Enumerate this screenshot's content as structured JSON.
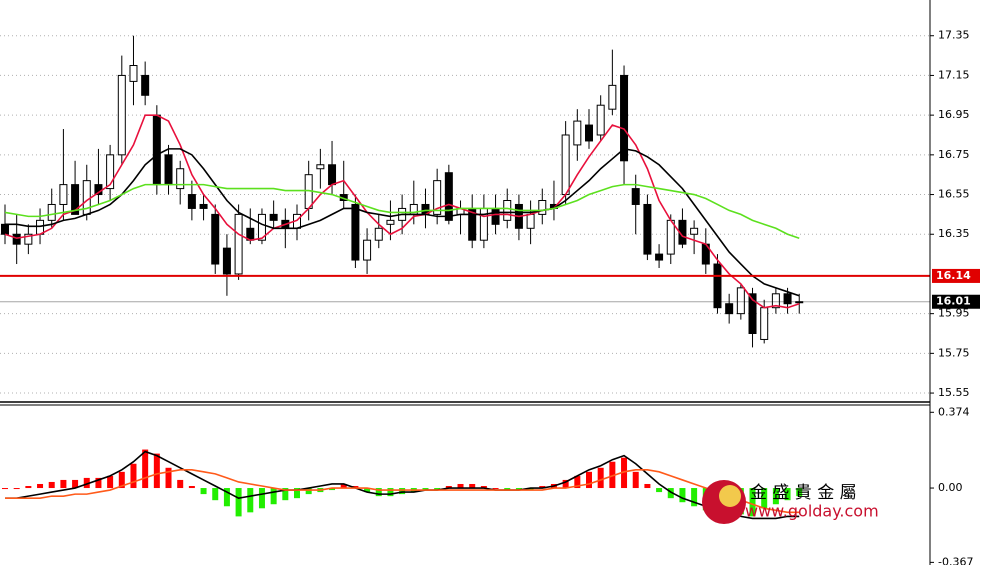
{
  "chart_data": [
    {
      "type": "candlestick",
      "open": [
        16.4,
        16.35,
        16.3,
        16.35,
        16.42,
        16.5,
        16.6,
        16.45,
        16.6,
        16.58,
        16.75,
        17.12,
        17.15,
        16.95,
        16.75,
        16.58,
        16.55,
        16.5,
        16.45,
        16.28,
        16.15,
        16.38,
        16.32,
        16.45,
        16.42,
        16.38,
        16.48,
        16.68,
        16.7,
        16.55,
        16.5,
        16.22,
        16.32,
        16.4,
        16.42,
        16.45,
        16.5,
        16.45,
        16.66,
        16.45,
        16.48,
        16.32,
        16.48,
        16.42,
        16.5,
        16.38,
        16.45,
        16.5,
        16.55,
        16.8,
        16.9,
        16.85,
        16.98,
        17.15,
        16.58,
        16.5,
        16.25,
        16.25,
        16.42,
        16.35,
        16.3,
        16.2,
        16.0,
        15.95,
        16.05,
        15.82,
        15.98,
        16.05,
        16.01
      ],
      "high": [
        16.5,
        16.45,
        16.4,
        16.48,
        16.58,
        16.88,
        16.72,
        16.7,
        16.78,
        16.8,
        17.25,
        17.35,
        17.22,
        17.0,
        16.8,
        16.72,
        16.62,
        16.55,
        16.5,
        16.35,
        16.5,
        16.48,
        16.48,
        16.52,
        16.48,
        16.5,
        16.72,
        16.78,
        16.82,
        16.72,
        16.55,
        16.38,
        16.45,
        16.52,
        16.55,
        16.62,
        16.58,
        16.68,
        16.7,
        16.52,
        16.55,
        16.55,
        16.55,
        16.58,
        16.55,
        16.52,
        16.58,
        16.62,
        16.92,
        16.98,
        16.98,
        17.05,
        17.28,
        17.2,
        16.65,
        16.55,
        16.3,
        16.45,
        16.48,
        16.42,
        16.38,
        16.25,
        16.05,
        16.1,
        16.08,
        16.02,
        16.08,
        16.08,
        16.05
      ],
      "low": [
        16.3,
        16.2,
        16.25,
        16.3,
        16.38,
        16.42,
        16.45,
        16.42,
        16.5,
        16.52,
        16.7,
        17.0,
        17.0,
        16.55,
        16.55,
        16.5,
        16.42,
        16.42,
        16.15,
        16.04,
        16.12,
        16.3,
        16.3,
        16.38,
        16.28,
        16.32,
        16.42,
        16.58,
        16.55,
        16.48,
        16.18,
        16.15,
        16.28,
        16.32,
        16.35,
        16.4,
        16.38,
        16.4,
        16.4,
        16.35,
        16.28,
        16.28,
        16.35,
        16.38,
        16.32,
        16.3,
        16.4,
        16.42,
        16.5,
        16.72,
        16.78,
        16.82,
        16.95,
        16.6,
        16.35,
        16.22,
        16.18,
        16.2,
        16.28,
        16.25,
        16.15,
        15.95,
        15.9,
        15.92,
        15.78,
        15.8,
        15.95,
        15.95,
        15.95
      ],
      "close": [
        16.35,
        16.3,
        16.35,
        16.42,
        16.5,
        16.6,
        16.45,
        16.62,
        16.55,
        16.75,
        17.15,
        17.2,
        17.05,
        16.6,
        16.6,
        16.68,
        16.48,
        16.48,
        16.2,
        16.15,
        16.45,
        16.32,
        16.45,
        16.42,
        16.38,
        16.45,
        16.65,
        16.7,
        16.6,
        16.52,
        16.22,
        16.32,
        16.38,
        16.42,
        16.48,
        16.5,
        16.45,
        16.62,
        16.42,
        16.48,
        16.32,
        16.48,
        16.4,
        16.52,
        16.38,
        16.45,
        16.52,
        16.48,
        16.85,
        16.92,
        16.82,
        17.0,
        17.1,
        16.72,
        16.5,
        16.25,
        16.22,
        16.42,
        16.3,
        16.38,
        16.2,
        15.98,
        15.95,
        16.08,
        15.85,
        15.98,
        16.05,
        16.0,
        16.01
      ],
      "up_color": "#ffffff",
      "down_color": "#000000",
      "lines": [
        {
          "color": "#e8103c",
          "values": [
            16.35,
            16.33,
            16.34,
            16.35,
            16.38,
            16.45,
            16.47,
            16.52,
            16.56,
            16.6,
            16.7,
            16.8,
            16.95,
            16.95,
            16.92,
            16.8,
            16.65,
            16.55,
            16.48,
            16.4,
            16.35,
            16.32,
            16.33,
            16.38,
            16.4,
            16.42,
            16.48,
            16.55,
            16.6,
            16.62,
            16.54,
            16.46,
            16.4,
            16.35,
            16.38,
            16.44,
            16.45,
            16.48,
            16.5,
            16.48,
            16.46,
            16.44,
            16.45,
            16.45,
            16.44,
            16.45,
            16.47,
            16.48,
            16.55,
            16.65,
            16.74,
            16.82,
            16.9,
            16.88,
            16.8,
            16.68,
            16.52,
            16.42,
            16.34,
            16.32,
            16.3,
            16.22,
            16.15,
            16.1,
            16.02,
            15.98,
            15.99,
            15.98,
            16.0
          ]
        },
        {
          "color": "#000000",
          "values": [
            16.4,
            16.4,
            16.39,
            16.39,
            16.4,
            16.42,
            16.43,
            16.45,
            16.47,
            16.5,
            16.55,
            16.62,
            16.7,
            16.75,
            16.78,
            16.78,
            16.75,
            16.68,
            16.6,
            16.52,
            16.46,
            16.43,
            16.4,
            16.38,
            16.38,
            16.38,
            16.4,
            16.42,
            16.45,
            16.48,
            16.48,
            16.46,
            16.45,
            16.44,
            16.45,
            16.45,
            16.45,
            16.44,
            16.44,
            16.45,
            16.45,
            16.45,
            16.46,
            16.46,
            16.46,
            16.46,
            16.47,
            16.48,
            16.52,
            16.57,
            16.62,
            16.68,
            16.73,
            16.78,
            16.77,
            16.74,
            16.7,
            16.64,
            16.58,
            16.5,
            16.42,
            16.34,
            16.26,
            16.2,
            16.14,
            16.1,
            16.08,
            16.06,
            16.04
          ]
        },
        {
          "color": "#5ce01e",
          "values": [
            16.46,
            16.45,
            16.44,
            16.44,
            16.45,
            16.46,
            16.47,
            16.48,
            16.5,
            16.52,
            16.55,
            16.58,
            16.6,
            16.6,
            16.6,
            16.6,
            16.6,
            16.6,
            16.59,
            16.58,
            16.58,
            16.58,
            16.58,
            16.58,
            16.57,
            16.57,
            16.57,
            16.56,
            16.55,
            16.53,
            16.51,
            16.49,
            16.47,
            16.46,
            16.46,
            16.46,
            16.47,
            16.47,
            16.47,
            16.48,
            16.48,
            16.48,
            16.48,
            16.48,
            16.47,
            16.47,
            16.47,
            16.48,
            16.5,
            16.52,
            16.55,
            16.57,
            16.59,
            16.6,
            16.6,
            16.59,
            16.58,
            16.57,
            16.56,
            16.55,
            16.53,
            16.5,
            16.47,
            16.45,
            16.42,
            16.4,
            16.38,
            16.35,
            16.33
          ]
        }
      ],
      "hlines": [
        {
          "value": 16.14,
          "color": "#e00000"
        },
        {
          "value": 16.01,
          "color": "#000000"
        }
      ],
      "ylim": [
        15.51,
        17.53
      ],
      "yticks": [
        17.35,
        17.15,
        16.95,
        16.75,
        16.55,
        16.35,
        15.95,
        15.75,
        15.55
      ],
      "grid": true
    },
    {
      "type": "macd",
      "values": [
        0.0,
        0.0,
        0.01,
        0.02,
        0.03,
        0.04,
        0.04,
        0.05,
        0.05,
        0.06,
        0.08,
        0.12,
        0.19,
        0.17,
        0.1,
        0.04,
        0.01,
        -0.03,
        -0.06,
        -0.09,
        -0.14,
        -0.12,
        -0.1,
        -0.08,
        -0.06,
        -0.05,
        -0.03,
        -0.02,
        -0.01,
        0.02,
        0.01,
        -0.02,
        -0.04,
        -0.04,
        -0.03,
        -0.02,
        -0.01,
        -0.01,
        0.01,
        0.02,
        0.02,
        0.01,
        0.0,
        -0.01,
        -0.01,
        -0.01,
        0.01,
        0.02,
        0.04,
        0.06,
        0.08,
        0.1,
        0.13,
        0.15,
        0.08,
        0.02,
        -0.02,
        -0.05,
        -0.07,
        -0.09,
        -0.11,
        -0.1,
        -0.12,
        -0.13,
        -0.14,
        -0.1,
        -0.08,
        -0.06,
        -0.04
      ],
      "positive_color": "#ff0000",
      "negative_color": "#22ee00",
      "lines": [
        {
          "color": "#000000",
          "values": [
            -0.05,
            -0.05,
            -0.04,
            -0.03,
            -0.02,
            -0.01,
            0.0,
            0.02,
            0.04,
            0.06,
            0.09,
            0.13,
            0.18,
            0.16,
            0.13,
            0.1,
            0.07,
            0.04,
            0.01,
            -0.02,
            -0.05,
            -0.04,
            -0.03,
            -0.02,
            -0.01,
            -0.01,
            0.0,
            0.01,
            0.02,
            0.02,
            0.0,
            -0.02,
            -0.03,
            -0.03,
            -0.02,
            -0.02,
            -0.01,
            -0.01,
            0.0,
            0.0,
            0.0,
            0.0,
            -0.01,
            -0.01,
            -0.01,
            0.0,
            0.0,
            0.01,
            0.03,
            0.06,
            0.09,
            0.11,
            0.14,
            0.16,
            0.12,
            0.07,
            0.02,
            -0.02,
            -0.05,
            -0.07,
            -0.09,
            -0.11,
            -0.13,
            -0.14,
            -0.15,
            -0.15,
            -0.15,
            -0.14,
            -0.14
          ]
        },
        {
          "color": "#ff5a1a",
          "values": [
            -0.05,
            -0.05,
            -0.05,
            -0.05,
            -0.04,
            -0.04,
            -0.03,
            -0.03,
            -0.02,
            -0.01,
            0.01,
            0.03,
            0.05,
            0.07,
            0.08,
            0.09,
            0.09,
            0.08,
            0.07,
            0.05,
            0.03,
            0.02,
            0.01,
            0.0,
            -0.01,
            -0.01,
            -0.01,
            -0.01,
            0.0,
            0.0,
            0.0,
            0.0,
            -0.01,
            -0.01,
            -0.01,
            -0.01,
            -0.01,
            -0.01,
            -0.01,
            -0.01,
            -0.01,
            -0.01,
            -0.01,
            -0.01,
            -0.01,
            -0.01,
            -0.01,
            0.0,
            0.0,
            0.01,
            0.02,
            0.04,
            0.06,
            0.08,
            0.09,
            0.09,
            0.08,
            0.06,
            0.04,
            0.02,
            0.0,
            -0.02,
            -0.04,
            -0.06,
            -0.08,
            -0.1,
            -0.11,
            -0.12,
            -0.12
          ]
        }
      ],
      "ylim": [
        -0.38,
        0.41
      ],
      "yticks": [
        0.374,
        {
          "value": 0,
          "label": "0.00"
        },
        -0.367
      ]
    }
  ],
  "watermark": {
    "name": "金 盛 貴 金 屬",
    "url": "www.golday.com"
  }
}
